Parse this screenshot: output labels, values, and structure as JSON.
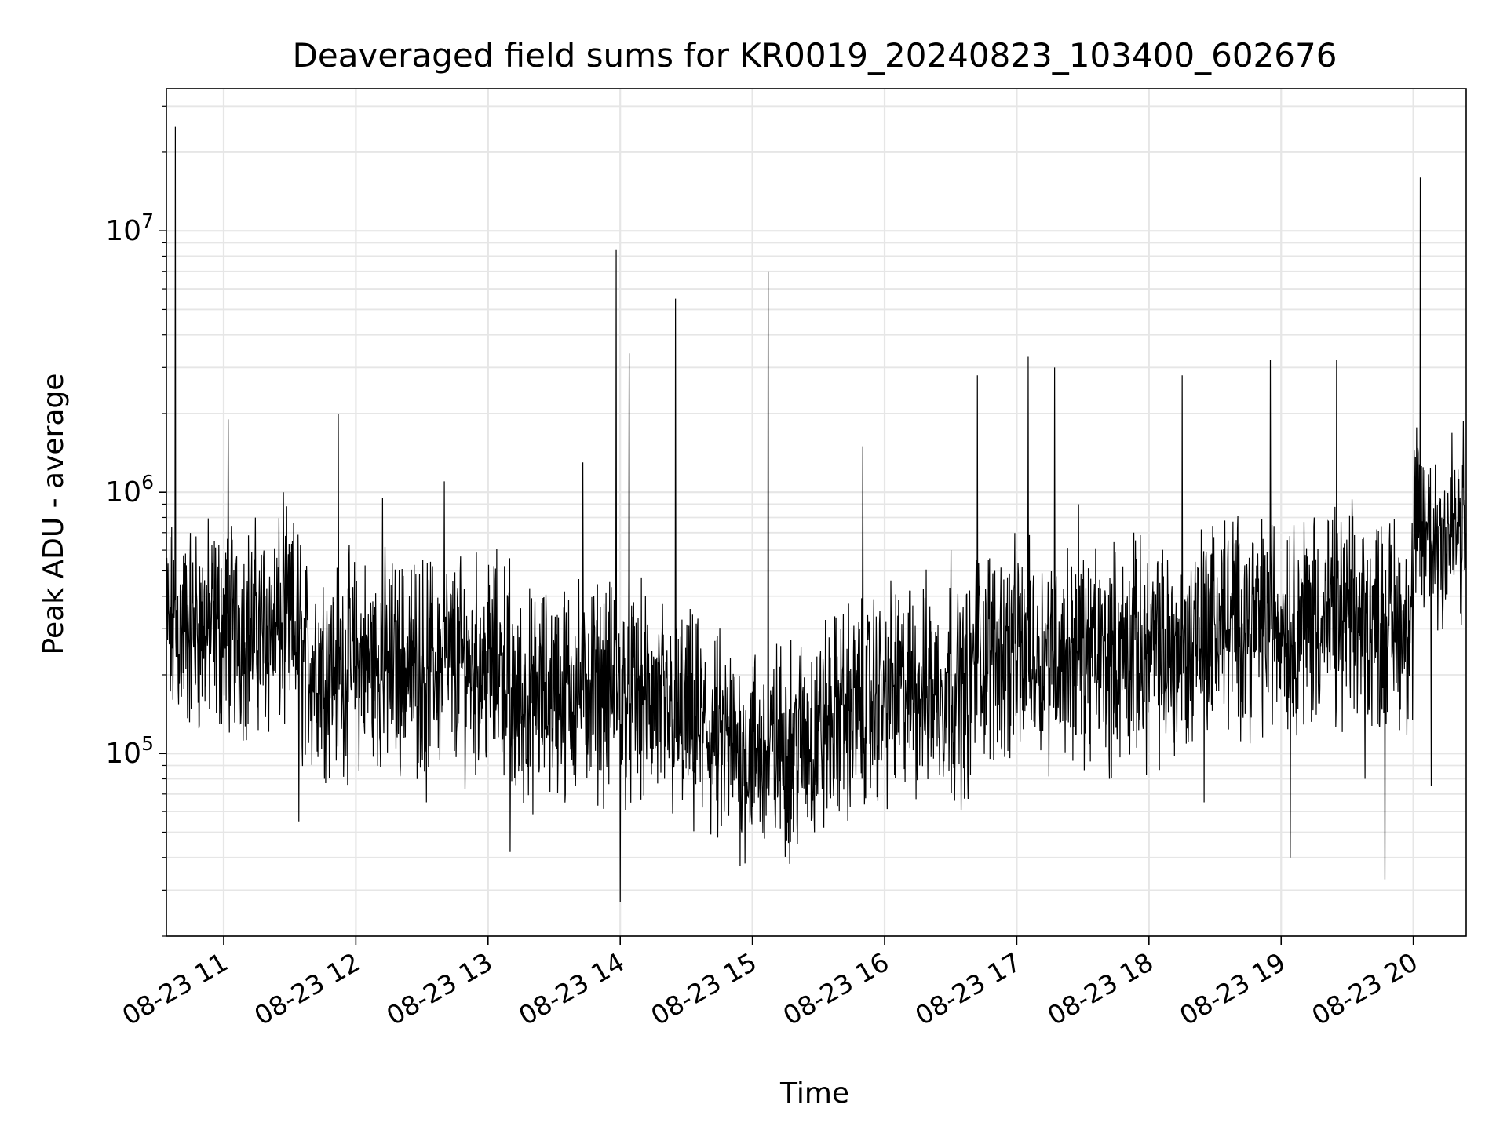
{
  "chart_data": {
    "type": "line",
    "title": "Deaveraged field sums for KR0019_20240823_103400_602676",
    "xlabel": "Time",
    "ylabel": "Peak ADU - average",
    "xscale": "time",
    "yscale": "log",
    "xlim": [
      "2024-08-23 10:34",
      "2024-08-23 20:24"
    ],
    "ylim": [
      20000,
      35000000
    ],
    "grid": true,
    "line_color": "#000000",
    "x_ticks": [
      "08-23 11",
      "08-23 12",
      "08-23 13",
      "08-23 14",
      "08-23 15",
      "08-23 16",
      "08-23 17",
      "08-23 18",
      "08-23 19",
      "08-23 20"
    ],
    "y_ticks": [
      {
        "value": 100000,
        "base": "10",
        "exp": "5"
      },
      {
        "value": 1000000,
        "base": "10",
        "exp": "6"
      },
      {
        "value": 10000000,
        "base": "10",
        "exp": "7"
      }
    ],
    "series": [
      {
        "values": [
          [
            "2024-08-23 10:34",
            300000
          ],
          [
            "2024-08-23 10:38",
            25000000
          ],
          [
            "2024-08-23 10:45",
            250000
          ],
          [
            "2024-08-23 10:53",
            300000
          ],
          [
            "2024-08-23 11:02",
            1900000
          ],
          [
            "2024-08-23 11:15",
            200000
          ],
          [
            "2024-08-23 11:27",
            1000000
          ],
          [
            "2024-08-23 11:34",
            55000
          ],
          [
            "2024-08-23 11:45",
            250000
          ],
          [
            "2024-08-23 11:52",
            2000000
          ],
          [
            "2024-08-23 12:05",
            280000
          ],
          [
            "2024-08-23 12:12",
            950000
          ],
          [
            "2024-08-23 12:16",
            130000
          ],
          [
            "2024-08-23 12:32",
            65000
          ],
          [
            "2024-08-23 12:40",
            1100000
          ],
          [
            "2024-08-23 12:55",
            180000
          ],
          [
            "2024-08-23 13:10",
            42000
          ],
          [
            "2024-08-23 13:20",
            220000
          ],
          [
            "2024-08-23 13:35",
            70000
          ],
          [
            "2024-08-23 13:43",
            1300000
          ],
          [
            "2024-08-23 13:53",
            250000
          ],
          [
            "2024-08-23 13:58",
            8500000
          ],
          [
            "2024-08-23 14:00",
            27000
          ],
          [
            "2024-08-23 14:04",
            3400000
          ],
          [
            "2024-08-23 14:12",
            200000
          ],
          [
            "2024-08-23 14:20",
            80000
          ],
          [
            "2024-08-23 14:25",
            5500000
          ],
          [
            "2024-08-23 14:35",
            300000
          ],
          [
            "2024-08-23 14:45",
            150000
          ],
          [
            "2024-08-23 14:53",
            100000
          ],
          [
            "2024-08-23 15:07",
            7000000
          ],
          [
            "2024-08-23 15:15",
            180000
          ],
          [
            "2024-08-23 15:28",
            50000
          ],
          [
            "2024-08-23 15:40",
            300000
          ],
          [
            "2024-08-23 15:50",
            1500000
          ],
          [
            "2024-08-23 16:00",
            150000
          ],
          [
            "2024-08-23 16:15",
            200000
          ],
          [
            "2024-08-23 16:30",
            600000
          ],
          [
            "2024-08-23 16:42",
            2800000
          ],
          [
            "2024-08-23 16:50",
            500000
          ],
          [
            "2024-08-23 17:05",
            3300000
          ],
          [
            "2024-08-23 17:17",
            3000000
          ],
          [
            "2024-08-23 17:28",
            900000
          ],
          [
            "2024-08-23 17:42",
            80000
          ],
          [
            "2024-08-23 17:53",
            700000
          ],
          [
            "2024-08-23 18:05",
            350000
          ],
          [
            "2024-08-23 18:15",
            2800000
          ],
          [
            "2024-08-23 18:25",
            65000
          ],
          [
            "2024-08-23 18:37",
            400000
          ],
          [
            "2024-08-23 18:55",
            3200000
          ],
          [
            "2024-08-23 19:04",
            40000
          ],
          [
            "2024-08-23 19:15",
            800000
          ],
          [
            "2024-08-23 19:25",
            3200000
          ],
          [
            "2024-08-23 19:38",
            80000
          ],
          [
            "2024-08-23 19:47",
            33000
          ],
          [
            "2024-08-23 20:00",
            500000
          ],
          [
            "2024-08-23 20:03",
            16000000
          ],
          [
            "2024-08-23 20:08",
            75000
          ],
          [
            "2024-08-23 20:24",
            700000
          ]
        ]
      }
    ]
  }
}
